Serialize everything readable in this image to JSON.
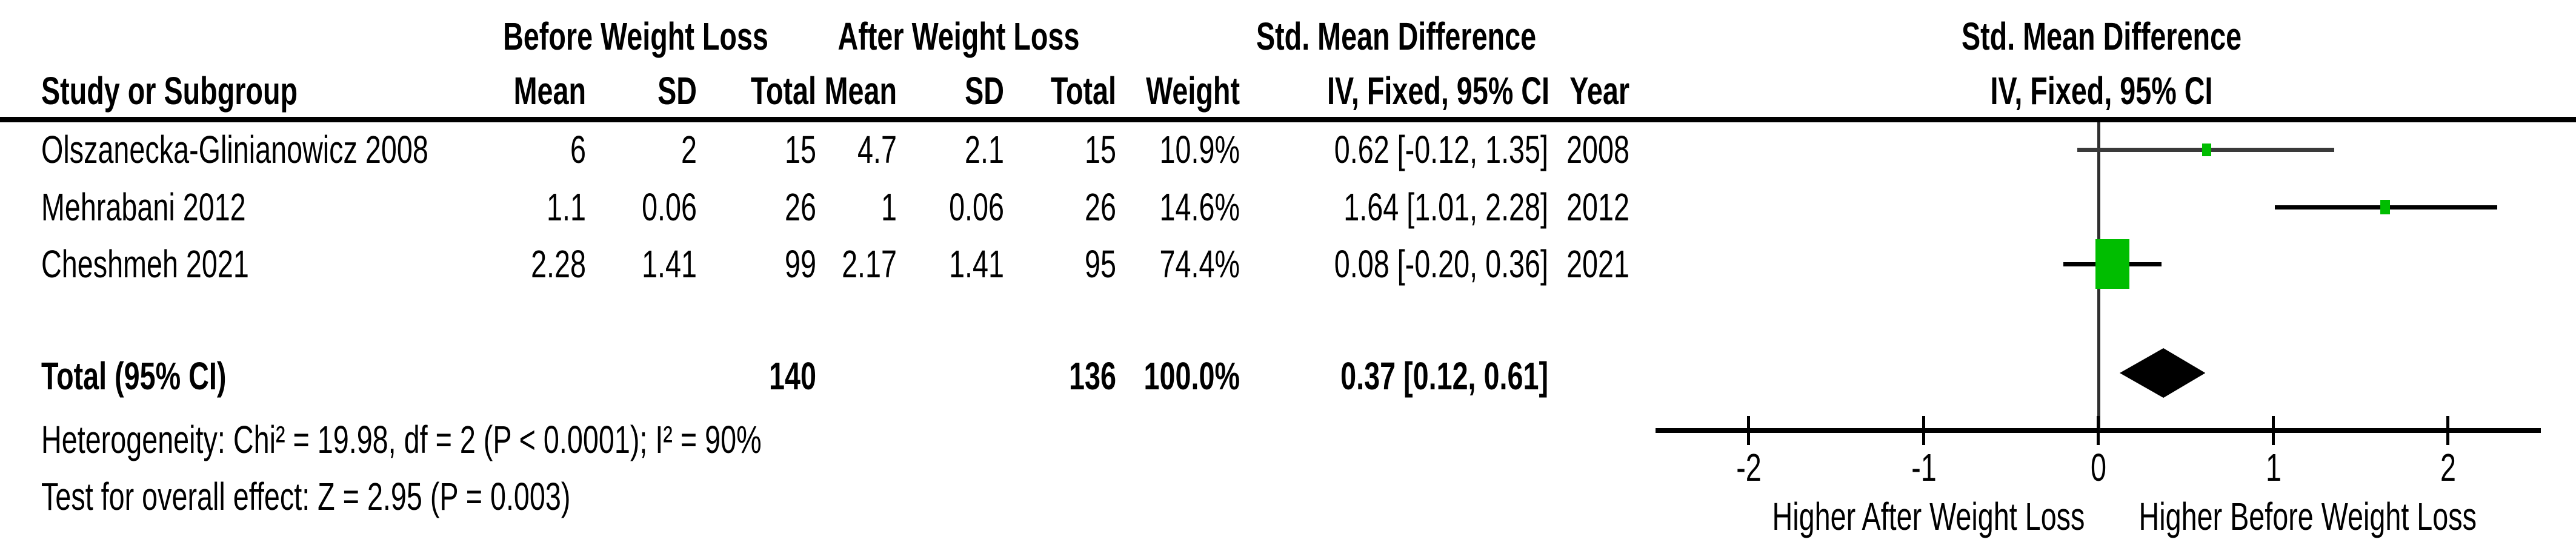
{
  "table": {
    "group1_header": "Before Weight Loss",
    "group2_header": "After Weight Loss",
    "effect_header": "Std. Mean Difference",
    "col_headers": {
      "study": "Study or Subgroup",
      "mean": "Mean",
      "sd": "SD",
      "total": "Total",
      "weight": "Weight",
      "ci": "IV, Fixed, 95% CI",
      "year": "Year"
    },
    "rows": [
      {
        "study": "Olszanecka-Glinianowicz 2008",
        "mean_before": "6",
        "sd_before": "2",
        "total_before": "15",
        "mean_after": "4.7",
        "sd_after": "2.1",
        "total_after": "15",
        "weight": "10.9%",
        "ci": "0.62 [-0.12, 1.35]",
        "year": "2008"
      },
      {
        "study": "Mehrabani 2012",
        "mean_before": "1.1",
        "sd_before": "0.06",
        "total_before": "26",
        "mean_after": "1",
        "sd_after": "0.06",
        "total_after": "26",
        "weight": "14.6%",
        "ci": "1.64 [1.01, 2.28]",
        "year": "2012"
      },
      {
        "study": "Cheshmeh 2021",
        "mean_before": "2.28",
        "sd_before": "1.41",
        "total_before": "99",
        "mean_after": "2.17",
        "sd_after": "1.41",
        "total_after": "95",
        "weight": "74.4%",
        "ci": "0.08 [-0.20, 0.36]",
        "year": "2021"
      }
    ],
    "total": {
      "label": "Total (95% CI)",
      "total_before": "140",
      "total_after": "136",
      "weight": "100.0%",
      "ci": "0.37 [0.12, 0.61]"
    },
    "heterogeneity": "Heterogeneity: Chi² = 19.98, df = 2 (P < 0.0001); I² = 90%",
    "overall_effect": "Test for overall effect: Z = 2.95 (P = 0.003)"
  },
  "plot": {
    "header_line1": "Std. Mean Difference",
    "header_line2": "IV, Fixed, 95% CI",
    "xlabel_left": "Higher After Weight Loss",
    "xlabel_right": "Higher Before Weight Loss",
    "marker_color": "#00bd00",
    "diamond_color": "#000000",
    "axis_color": "#000000",
    "zero_line_color": "#2f2f2f",
    "ci_line_colors": [
      "#3a3a3a",
      "#000000",
      "#000000"
    ]
  },
  "chart_data": {
    "type": "forest",
    "title": "Std. Mean Difference",
    "model": "IV, Fixed, 95% CI",
    "xticks": [
      -2,
      -1,
      0,
      1,
      2
    ],
    "xlim": [
      -2.55,
      2.55
    ],
    "studies": [
      {
        "name": "Olszanecka-Glinianowicz 2008",
        "year": 2008,
        "mean_before": 6,
        "sd_before": 2,
        "total_before": 15,
        "mean_after": 4.7,
        "sd_after": 2.1,
        "total_after": 15,
        "weight_pct": 10.9,
        "estimate": 0.62,
        "ci_low": -0.12,
        "ci_high": 1.35
      },
      {
        "name": "Mehrabani 2012",
        "year": 2012,
        "mean_before": 1.1,
        "sd_before": 0.06,
        "total_before": 26,
        "mean_after": 1,
        "sd_after": 0.06,
        "total_after": 26,
        "weight_pct": 14.6,
        "estimate": 1.64,
        "ci_low": 1.01,
        "ci_high": 2.28
      },
      {
        "name": "Cheshmeh 2021",
        "year": 2021,
        "mean_before": 2.28,
        "sd_before": 1.41,
        "total_before": 99,
        "mean_after": 2.17,
        "sd_after": 1.41,
        "total_after": 95,
        "weight_pct": 74.4,
        "estimate": 0.08,
        "ci_low": -0.2,
        "ci_high": 0.36
      }
    ],
    "total": {
      "label": "Total (95% CI)",
      "total_before": 140,
      "total_after": 136,
      "weight_pct": 100.0,
      "estimate": 0.37,
      "ci_low": 0.12,
      "ci_high": 0.61
    },
    "heterogeneity": {
      "chi2": 19.98,
      "df": 2,
      "p": "< 0.0001",
      "i2_pct": 90
    },
    "overall_effect": {
      "z": 2.95,
      "p": "= 0.003"
    },
    "footer_left": "Higher After Weight Loss",
    "footer_right": "Higher Before Weight Loss"
  }
}
